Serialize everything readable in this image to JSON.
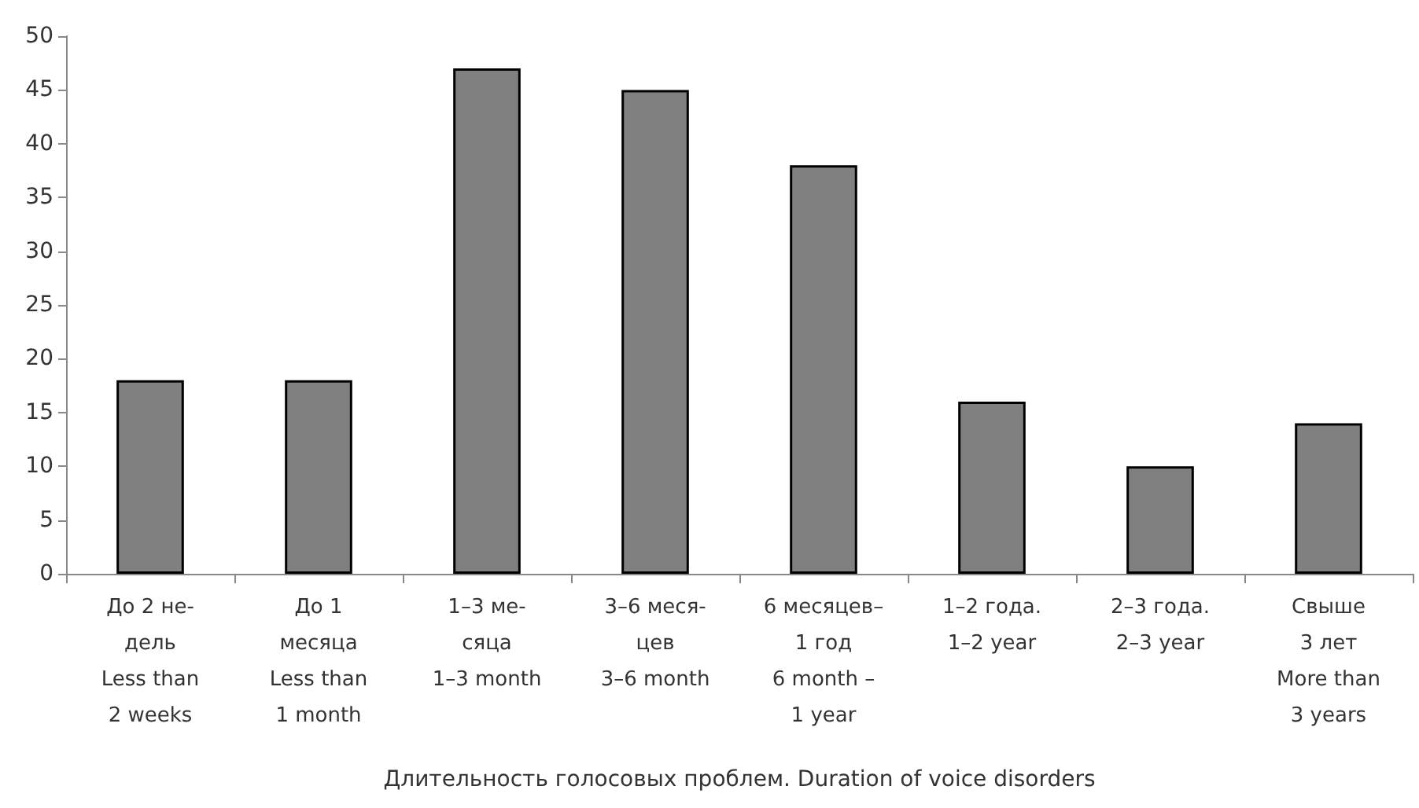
{
  "chart_data": {
    "type": "bar",
    "xlabel": "Длительность голосовых проблем. Duration of voice disorders",
    "categories": [
      "До 2 не-\nдель\nLess than\n2 weeks",
      "До 1\nмесяца\nLess than\n1 month",
      "1–3 ме-\nсяца\n1–3 month",
      "3–6 меся-\nцев\n3–6 month",
      "6 месяцев–\n1 год\n6 month –\n1 year",
      "1–2 года.\n1–2 year",
      "2–3 года.\n2–3 year",
      "Свыше\n3 лет\nMore than\n3 years"
    ],
    "values": [
      18,
      18,
      47,
      45,
      38,
      16,
      10,
      14
    ],
    "color": "#808080",
    "ylim": [
      0,
      50
    ],
    "yticks": [
      0,
      5,
      10,
      15,
      20,
      25,
      30,
      35,
      40,
      45,
      50
    ],
    "grid": false
  }
}
